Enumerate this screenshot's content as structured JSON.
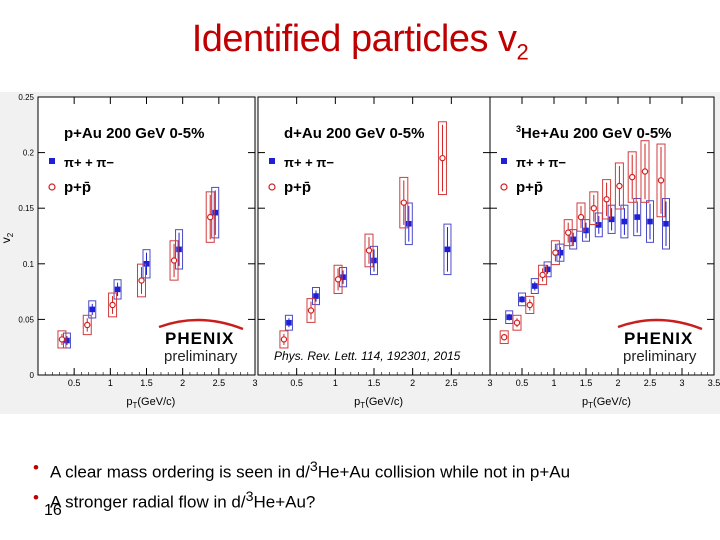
{
  "slide": {
    "title_main": "Identified particles v",
    "title_sub": "2",
    "bullets": [
      {
        "before": "A clear mass ordering is seen in d/",
        "sup": "3",
        "after": "He+Au collision while not in p+Au"
      },
      {
        "before": "A stronger radial flow in d/",
        "sup": "3",
        "after": "He+Au?"
      }
    ],
    "page_number": "16"
  },
  "colors": {
    "pion_marker": "#1f1fd6",
    "pion_box": "#4b4bc8",
    "proton_marker": "#d22020",
    "proton_box": "#d23c3c",
    "frame": "#000000",
    "phenix_arc": "#c81e1e"
  },
  "chart_data": [
    {
      "type": "scatter",
      "title": "p+Au 200 GeV 0-5%",
      "xlabel": "pT(GeV/c)",
      "ylabel": "v2",
      "xlim": [
        0,
        3.0
      ],
      "ylim": [
        0,
        0.25
      ],
      "xticks": [
        "0.5",
        "1",
        "1.5",
        "2",
        "2.5",
        "3"
      ],
      "yticks": [
        "0",
        "0.05",
        "0.1",
        "0.15",
        "0.2",
        "0.25"
      ],
      "legend": [
        "π+ + π−",
        "p+p̄"
      ],
      "annotation": "PHENIX preliminary",
      "series": [
        {
          "name": "pi",
          "x": [
            0.4,
            0.75,
            1.1,
            1.5,
            1.95,
            2.45
          ],
          "y": [
            0.031,
            0.059,
            0.077,
            0.1,
            0.113,
            0.146
          ],
          "err": [
            0.004,
            0.005,
            0.006,
            0.01,
            0.015,
            0.02
          ]
        },
        {
          "name": "p",
          "x": [
            0.4,
            0.75,
            1.1,
            1.5,
            1.95,
            2.45
          ],
          "y": [
            0.032,
            0.045,
            0.063,
            0.085,
            0.103,
            0.142
          ],
          "err": [
            0.005,
            0.006,
            0.008,
            0.012,
            0.015,
            0.02
          ]
        }
      ]
    },
    {
      "type": "scatter",
      "title": "d+Au 200 GeV 0-5%",
      "xlabel": "pT(GeV/c)",
      "ylabel": "",
      "xlim": [
        0,
        3.0
      ],
      "ylim": [
        0,
        0.25
      ],
      "xticks": [
        "0.5",
        "1",
        "1.5",
        "2",
        "2.5",
        "3"
      ],
      "yticks": [],
      "legend": [
        "π+ + π−",
        "p+p̄"
      ],
      "annotation": "Phys. Rev. Lett. 114, 192301, 2015",
      "series": [
        {
          "name": "pi",
          "x": [
            0.4,
            0.75,
            1.1,
            1.5,
            1.95,
            2.45
          ],
          "y": [
            0.047,
            0.071,
            0.088,
            0.103,
            0.136,
            0.113
          ],
          "err": [
            0.004,
            0.005,
            0.006,
            0.01,
            0.016,
            0.02
          ]
        },
        {
          "name": "p",
          "x": [
            0.4,
            0.75,
            1.1,
            1.5,
            1.95,
            2.45
          ],
          "y": [
            0.032,
            0.058,
            0.086,
            0.112,
            0.155,
            0.195
          ],
          "err": [
            0.005,
            0.008,
            0.01,
            0.012,
            0.02,
            0.03
          ]
        }
      ]
    },
    {
      "type": "scatter",
      "title": "3He+Au 200 GeV 0-5%",
      "xlabel": "pT(GeV/c)",
      "ylabel": "",
      "xlim": [
        0,
        3.5
      ],
      "ylim": [
        0,
        0.25
      ],
      "xticks": [
        "0.5",
        "1",
        "1.5",
        "2",
        "2.5",
        "3",
        "3.5"
      ],
      "yticks": [],
      "legend": [
        "π+ + π−",
        "p+p̄"
      ],
      "annotation": "PHENIX preliminary",
      "series": [
        {
          "name": "pi",
          "x": [
            0.3,
            0.5,
            0.7,
            0.9,
            1.1,
            1.3,
            1.5,
            1.7,
            1.9,
            2.1,
            2.3,
            2.5,
            2.75
          ],
          "y": [
            0.052,
            0.068,
            0.08,
            0.095,
            0.11,
            0.122,
            0.13,
            0.135,
            0.14,
            0.138,
            0.142,
            0.138,
            0.136
          ],
          "err": [
            0.003,
            0.003,
            0.004,
            0.004,
            0.005,
            0.006,
            0.007,
            0.008,
            0.01,
            0.012,
            0.014,
            0.016,
            0.02
          ]
        },
        {
          "name": "p",
          "x": [
            0.3,
            0.5,
            0.7,
            0.9,
            1.1,
            1.3,
            1.5,
            1.7,
            1.9,
            2.1,
            2.3,
            2.5,
            2.75
          ],
          "y": [
            0.034,
            0.047,
            0.063,
            0.09,
            0.11,
            0.128,
            0.142,
            0.15,
            0.158,
            0.17,
            0.178,
            0.183,
            0.175
          ],
          "err": [
            0.003,
            0.004,
            0.005,
            0.006,
            0.008,
            0.009,
            0.01,
            0.012,
            0.015,
            0.018,
            0.02,
            0.025,
            0.03
          ]
        }
      ]
    }
  ]
}
